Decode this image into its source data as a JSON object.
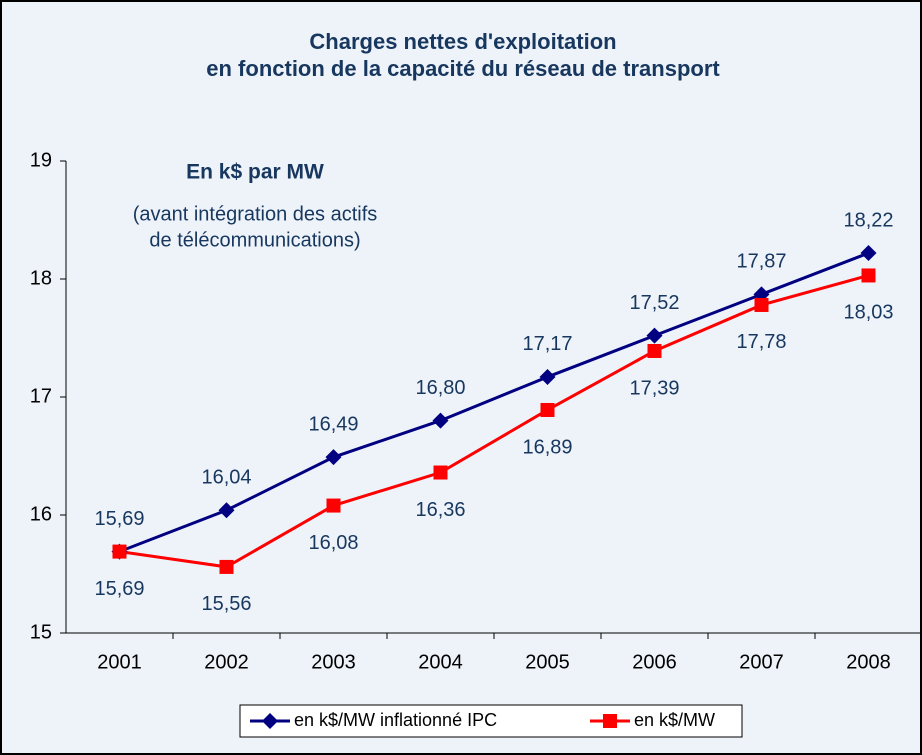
{
  "chart_data": {
    "type": "line",
    "title": [
      "Charges nettes d'exploitation",
      "en fonction de la capacité du réseau de transport"
    ],
    "annotations": [
      "En k$ par MW",
      "(avant intégration des actifs",
      "de télécommunications)"
    ],
    "categories": [
      "2001",
      "2002",
      "2003",
      "2004",
      "2005",
      "2006",
      "2007",
      "2008"
    ],
    "series": [
      {
        "name": "en k$/MW inflationné IPC",
        "color": "#000080",
        "marker": "diamond",
        "values": [
          15.69,
          16.04,
          16.49,
          16.8,
          17.17,
          17.52,
          17.87,
          18.22
        ],
        "value_labels": [
          "15,69",
          "16,04",
          "16,49",
          "16,80",
          "17,17",
          "17,52",
          "17,87",
          "18,22"
        ]
      },
      {
        "name": "en k$/MW",
        "color": "#ff0000",
        "marker": "square",
        "values": [
          15.69,
          15.56,
          16.08,
          16.36,
          16.89,
          17.39,
          17.78,
          18.03
        ],
        "value_labels": [
          "15,69",
          "15,56",
          "16,08",
          "16,36",
          "16,89",
          "17,39",
          "17,78",
          "18,03"
        ]
      }
    ],
    "ylim": [
      15,
      19
    ],
    "yticks": [
      15,
      16,
      17,
      18,
      19
    ],
    "grid": false,
    "legend": "bottom"
  }
}
